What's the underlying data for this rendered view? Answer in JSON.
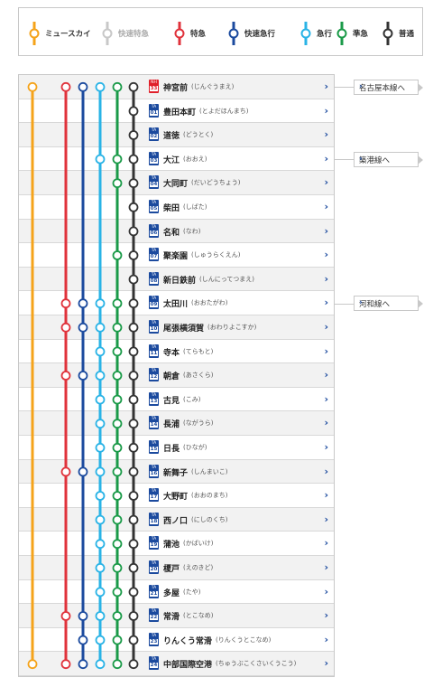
{
  "legend": [
    {
      "name": "ミュースカイ",
      "color": "#f5a31a",
      "faded": false
    },
    {
      "name": "快速特急",
      "color": "#c8c8c8",
      "faded": true
    },
    {
      "name": "特急",
      "color": "#e0323b",
      "faded": false
    },
    {
      "name": "快速急行",
      "color": "#1b4a9e",
      "faded": false
    },
    {
      "name": "急行",
      "color": "#29b3e6",
      "faded": false
    },
    {
      "name": "準急",
      "color": "#1a9a48",
      "faded": false
    },
    {
      "name": "普通",
      "color": "#333333",
      "faded": false
    }
  ],
  "stations": [
    {
      "name": "神宮前",
      "kana": "(じんぐうまえ)",
      "line": "NH",
      "num": "33",
      "stops": [
        1,
        0,
        1,
        1,
        1,
        1,
        1
      ]
    },
    {
      "name": "豊田本町",
      "kana": "(とよだほんまち)",
      "line": "TA",
      "num": "01",
      "stops": [
        0,
        0,
        0,
        0,
        0,
        0,
        1
      ]
    },
    {
      "name": "道徳",
      "kana": "(どうとく)",
      "line": "TA",
      "num": "02",
      "stops": [
        0,
        0,
        0,
        0,
        0,
        0,
        1
      ]
    },
    {
      "name": "大江",
      "kana": "(おおえ)",
      "line": "TA",
      "num": "03",
      "stops": [
        0,
        0,
        0,
        0,
        1,
        1,
        1
      ]
    },
    {
      "name": "大同町",
      "kana": "(だいどうちょう)",
      "line": "TA",
      "num": "04",
      "stops": [
        0,
        0,
        0,
        0,
        0,
        1,
        1
      ]
    },
    {
      "name": "柴田",
      "kana": "(しばた)",
      "line": "TA",
      "num": "05",
      "stops": [
        0,
        0,
        0,
        0,
        0,
        0,
        1
      ]
    },
    {
      "name": "名和",
      "kana": "(なわ)",
      "line": "TA",
      "num": "06",
      "stops": [
        0,
        0,
        0,
        0,
        0,
        0,
        1
      ]
    },
    {
      "name": "聚楽園",
      "kana": "(しゅうらくえん)",
      "line": "TA",
      "num": "07",
      "stops": [
        0,
        0,
        0,
        0,
        0,
        1,
        1
      ]
    },
    {
      "name": "新日鉄前",
      "kana": "(しんにってつまえ)",
      "line": "TA",
      "num": "08",
      "stops": [
        0,
        0,
        0,
        0,
        0,
        0,
        1
      ]
    },
    {
      "name": "太田川",
      "kana": "(おおたがわ)",
      "line": "TA",
      "num": "09",
      "stops": [
        0,
        0,
        1,
        1,
        1,
        1,
        1
      ]
    },
    {
      "name": "尾張横須賀",
      "kana": "(おわりよこすか)",
      "line": "TA",
      "num": "10",
      "stops": [
        0,
        0,
        1,
        1,
        1,
        1,
        1
      ]
    },
    {
      "name": "寺本",
      "kana": "(てらもと)",
      "line": "TA",
      "num": "11",
      "stops": [
        0,
        0,
        0,
        0,
        1,
        1,
        1
      ]
    },
    {
      "name": "朝倉",
      "kana": "(あさくら)",
      "line": "TA",
      "num": "12",
      "stops": [
        0,
        0,
        1,
        1,
        1,
        1,
        1
      ]
    },
    {
      "name": "古見",
      "kana": "(こみ)",
      "line": "TA",
      "num": "13",
      "stops": [
        0,
        0,
        0,
        0,
        1,
        1,
        1
      ]
    },
    {
      "name": "長浦",
      "kana": "(ながうら)",
      "line": "TA",
      "num": "14",
      "stops": [
        0,
        0,
        0,
        0,
        1,
        1,
        1
      ]
    },
    {
      "name": "日長",
      "kana": "(ひなが)",
      "line": "TA",
      "num": "15",
      "stops": [
        0,
        0,
        0,
        0,
        1,
        1,
        1
      ]
    },
    {
      "name": "新舞子",
      "kana": "(しんまいこ)",
      "line": "TA",
      "num": "16",
      "stops": [
        0,
        0,
        1,
        1,
        1,
        1,
        1
      ]
    },
    {
      "name": "大野町",
      "kana": "(おおのまち)",
      "line": "TA",
      "num": "17",
      "stops": [
        0,
        0,
        0,
        0,
        1,
        1,
        1
      ]
    },
    {
      "name": "西ノ口",
      "kana": "(にしのくち)",
      "line": "TA",
      "num": "18",
      "stops": [
        0,
        0,
        0,
        0,
        1,
        1,
        1
      ]
    },
    {
      "name": "蒲池",
      "kana": "(かばいけ)",
      "line": "TA",
      "num": "19",
      "stops": [
        0,
        0,
        0,
        0,
        1,
        1,
        1
      ]
    },
    {
      "name": "榎戸",
      "kana": "(えのきど)",
      "line": "TA",
      "num": "20",
      "stops": [
        0,
        0,
        0,
        0,
        1,
        1,
        1
      ]
    },
    {
      "name": "多屋",
      "kana": "(たや)",
      "line": "TA",
      "num": "21",
      "stops": [
        0,
        0,
        0,
        0,
        1,
        1,
        1
      ]
    },
    {
      "name": "常滑",
      "kana": "(とこなめ)",
      "line": "TA",
      "num": "22",
      "stops": [
        0,
        0,
        1,
        1,
        1,
        1,
        1
      ]
    },
    {
      "name": "りんくう常滑",
      "kana": "(りんくうとこなめ)",
      "line": "TA",
      "num": "23",
      "stops": [
        0,
        0,
        0,
        1,
        1,
        1,
        1
      ]
    },
    {
      "name": "中部国際空港",
      "kana": "(ちゅうぶこくさいくうこう)",
      "line": "TA",
      "num": "24",
      "stops": [
        1,
        0,
        1,
        1,
        1,
        1,
        1
      ]
    }
  ],
  "connections": [
    {
      "label": "名古屋本線へ",
      "row": 0
    },
    {
      "label": "築港線へ",
      "row": 3
    },
    {
      "label": "河和線へ",
      "row": 9
    }
  ],
  "ui": {
    "chevron": "›"
  }
}
